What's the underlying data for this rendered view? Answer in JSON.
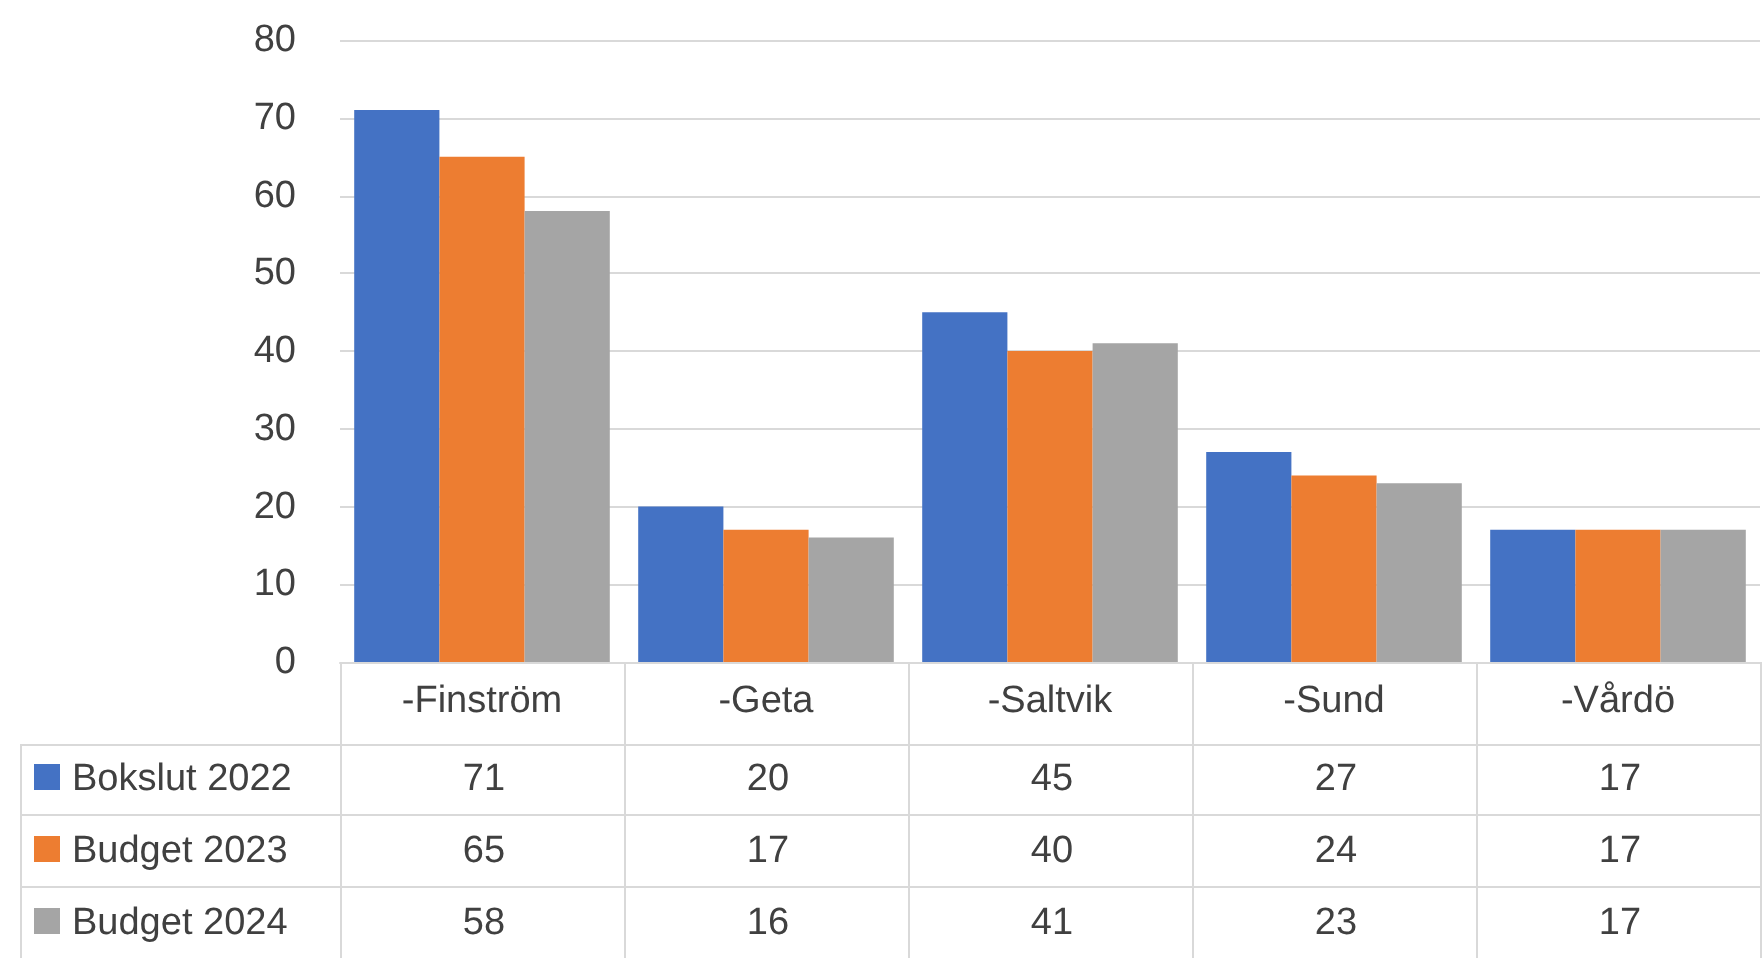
{
  "chart_data": {
    "type": "bar",
    "categories": [
      "-Finström",
      "-Geta",
      "-Saltvik",
      "-Sund",
      "-Vårdö"
    ],
    "series": [
      {
        "name": "Bokslut 2022",
        "color": "#4472c4",
        "values": [
          71,
          20,
          45,
          27,
          17
        ]
      },
      {
        "name": "Budget 2023",
        "color": "#ed7d31",
        "values": [
          65,
          17,
          40,
          24,
          17
        ]
      },
      {
        "name": "Budget 2024",
        "color": "#a5a5a5",
        "values": [
          58,
          16,
          41,
          23,
          17
        ]
      }
    ],
    "ylim": [
      0,
      80
    ],
    "yticks": [
      0,
      10,
      20,
      30,
      40,
      50,
      60,
      70,
      80
    ],
    "grid": "y",
    "legend": "bottom left",
    "data_labels": true
  }
}
